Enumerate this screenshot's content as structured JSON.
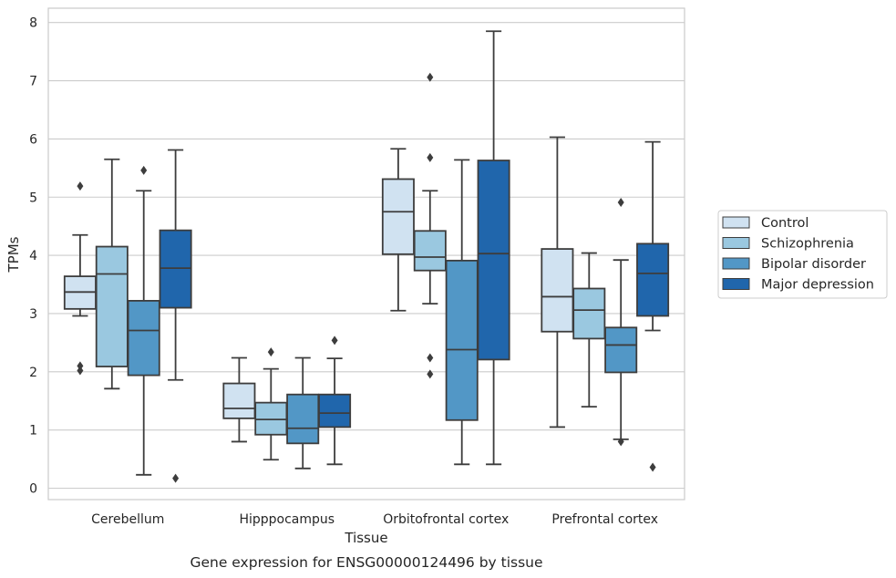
{
  "chart_data": {
    "type": "box",
    "title": "",
    "caption": "Gene expression for ENSG00000124496 by tissue",
    "xlabel": "Tissue",
    "ylabel": "TPMs",
    "ylim": [
      -0.2,
      8.2
    ],
    "yticks": [
      0,
      1,
      2,
      3,
      4,
      5,
      6,
      7,
      8
    ],
    "grid": "horizontal",
    "legend_position": "right",
    "categories": [
      "Cerebellum",
      "Hipppocampus",
      "Orbitofrontal cortex",
      "Prefrontal cortex"
    ],
    "series": [
      {
        "name": "Control",
        "color": "#d0e2f1",
        "boxes": [
          {
            "whislo": 2.96,
            "q1": 3.08,
            "med": 3.37,
            "q3": 3.64,
            "whishi": 4.35,
            "fliers": [
              5.19,
              2.1,
              2.02
            ]
          },
          {
            "whislo": 0.8,
            "q1": 1.2,
            "med": 1.37,
            "q3": 1.8,
            "whishi": 2.24,
            "fliers": []
          },
          {
            "whislo": 3.05,
            "q1": 4.02,
            "med": 4.75,
            "q3": 5.31,
            "whishi": 5.83,
            "fliers": []
          },
          {
            "whislo": 1.05,
            "q1": 2.69,
            "med": 3.29,
            "q3": 4.11,
            "whishi": 6.03,
            "fliers": []
          }
        ]
      },
      {
        "name": "Schizophrenia",
        "color": "#9ac8e0",
        "boxes": [
          {
            "whislo": 1.71,
            "q1": 2.09,
            "med": 3.68,
            "q3": 4.15,
            "whishi": 5.65,
            "fliers": []
          },
          {
            "whislo": 0.49,
            "q1": 0.92,
            "med": 1.18,
            "q3": 1.47,
            "whishi": 2.05,
            "fliers": [
              2.34
            ]
          },
          {
            "whislo": 3.17,
            "q1": 3.74,
            "med": 3.97,
            "q3": 4.42,
            "whishi": 5.11,
            "fliers": [
              7.06,
              5.68,
              2.24,
              1.96
            ]
          },
          {
            "whislo": 1.4,
            "q1": 2.57,
            "med": 3.06,
            "q3": 3.43,
            "whishi": 4.04,
            "fliers": []
          }
        ]
      },
      {
        "name": "Bipolar disorder",
        "color": "#5297c6",
        "boxes": [
          {
            "whislo": 0.23,
            "q1": 1.94,
            "med": 2.71,
            "q3": 3.22,
            "whishi": 5.11,
            "fliers": [
              5.46
            ]
          },
          {
            "whislo": 0.34,
            "q1": 0.77,
            "med": 1.03,
            "q3": 1.61,
            "whishi": 2.24,
            "fliers": []
          },
          {
            "whislo": 0.41,
            "q1": 1.17,
            "med": 2.38,
            "q3": 3.91,
            "whishi": 5.64,
            "fliers": []
          },
          {
            "whislo": 0.84,
            "q1": 1.99,
            "med": 2.46,
            "q3": 2.76,
            "whishi": 3.92,
            "fliers": [
              0.8,
              4.91
            ]
          }
        ]
      },
      {
        "name": "Major depression",
        "color": "#2066ac",
        "boxes": [
          {
            "whislo": 1.86,
            "q1": 3.1,
            "med": 3.78,
            "q3": 4.43,
            "whishi": 5.81,
            "fliers": [
              0.17
            ]
          },
          {
            "whislo": 0.41,
            "q1": 1.05,
            "med": 1.29,
            "q3": 1.61,
            "whishi": 2.23,
            "fliers": [
              2.54
            ]
          },
          {
            "whislo": 0.41,
            "q1": 2.21,
            "med": 4.03,
            "q3": 5.63,
            "whishi": 7.85,
            "fliers": []
          },
          {
            "whislo": 2.71,
            "q1": 2.96,
            "med": 3.69,
            "q3": 4.2,
            "whishi": 5.95,
            "fliers": [
              0.36
            ]
          }
        ]
      }
    ]
  }
}
